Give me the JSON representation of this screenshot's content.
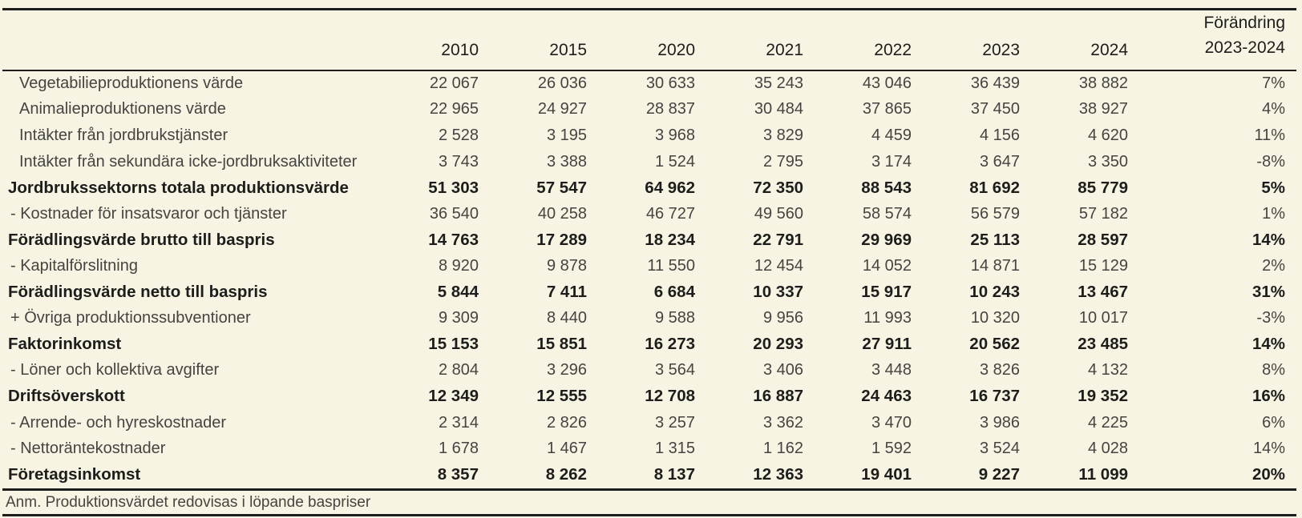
{
  "columns": {
    "years": [
      "2010",
      "2015",
      "2020",
      "2021",
      "2022",
      "2023",
      "2024"
    ],
    "change_label": "Förändring",
    "change_period": "2023-2024"
  },
  "rows": [
    {
      "label": "Vegetabilieproduktionens värde",
      "style": "plain",
      "values": [
        "22 067",
        "26 036",
        "30 633",
        "35 243",
        "43 046",
        "36 439",
        "38 882"
      ],
      "change": "7%"
    },
    {
      "label": "Animalieproduktionens värde",
      "style": "plain",
      "values": [
        "22 965",
        "24 927",
        "28 837",
        "30 484",
        "37 865",
        "37 450",
        "38 927"
      ],
      "change": "4%"
    },
    {
      "label": "Intäkter från jordbrukstjänster",
      "style": "plain",
      "values": [
        "2 528",
        "3 195",
        "3 968",
        "3 829",
        "4 459",
        "4 156",
        "4 620"
      ],
      "change": "11%"
    },
    {
      "label": "Intäkter från sekundära icke-jordbruksaktiviteter",
      "style": "plain",
      "values": [
        "3 743",
        "3 388",
        "1 524",
        "2 795",
        "3 174",
        "3 647",
        "3 350"
      ],
      "change": "-8%"
    },
    {
      "label": "Jordbrukssektorns totala produktionsvärde",
      "style": "bold",
      "values": [
        "51 303",
        "57 547",
        "64 962",
        "72 350",
        "88 543",
        "81 692",
        "85 779"
      ],
      "change": "5%"
    },
    {
      "label": "- Kostnader för insatsvaror och tjänster",
      "style": "sub",
      "values": [
        "36 540",
        "40 258",
        "46 727",
        "49 560",
        "58 574",
        "56 579",
        "57 182"
      ],
      "change": "1%"
    },
    {
      "label": "Förädlingsvärde brutto till baspris",
      "style": "bold",
      "values": [
        "14 763",
        "17 289",
        "18 234",
        "22 791",
        "29 969",
        "25 113",
        "28 597"
      ],
      "change": "14%"
    },
    {
      "label": "- Kapitalförslitning",
      "style": "sub",
      "values": [
        "8 920",
        "9 878",
        "11 550",
        "12 454",
        "14 052",
        "14 871",
        "15 129"
      ],
      "change": "2%"
    },
    {
      "label": "Förädlingsvärde netto till baspris",
      "style": "bold",
      "values": [
        "5 844",
        "7 411",
        "6 684",
        "10 337",
        "15 917",
        "10 243",
        "13 467"
      ],
      "change": "31%"
    },
    {
      "label": "+ Övriga produktionssubventioner",
      "style": "sub",
      "values": [
        "9 309",
        "8 440",
        "9 588",
        "9 956",
        "11 993",
        "10 320",
        "10 017"
      ],
      "change": "-3%"
    },
    {
      "label": "Faktorinkomst",
      "style": "bold",
      "values": [
        "15 153",
        "15 851",
        "16 273",
        "20 293",
        "27 911",
        "20 562",
        "23 485"
      ],
      "change": "14%"
    },
    {
      "label": "- Löner och kollektiva avgifter",
      "style": "sub",
      "values": [
        "2 804",
        "3 296",
        "3 564",
        "3 406",
        "3 448",
        "3 826",
        "4 132"
      ],
      "change": "8%"
    },
    {
      "label": "Driftsöverskott",
      "style": "bold",
      "values": [
        "12 349",
        "12 555",
        "12 708",
        "16 887",
        "24 463",
        "16 737",
        "19 352"
      ],
      "change": "16%"
    },
    {
      "label": "- Arrende- och hyreskostnader",
      "style": "sub",
      "values": [
        "2 314",
        "2 826",
        "3 257",
        "3 362",
        "3 470",
        "3 986",
        "4 225"
      ],
      "change": "6%"
    },
    {
      "label": "- Nettoräntekostnader",
      "style": "sub",
      "values": [
        "1 678",
        "1 467",
        "1 315",
        "1 162",
        "1 592",
        "3 524",
        "4 028"
      ],
      "change": "14%"
    },
    {
      "label": "Företagsinkomst",
      "style": "bold",
      "values": [
        "8 357",
        "8 262",
        "8 137",
        "12 363",
        "19 401",
        "9 227",
        "11 099"
      ],
      "change": "20%"
    }
  ],
  "footnote": "Anm. Produktionsvärdet redovisas i löpande baspriser",
  "colors": {
    "background": "#f7f4e3",
    "rule": "#1c1c1a",
    "text_strong": "#1d1d1b",
    "text_regular": "#454440"
  },
  "chart_data": {
    "type": "table",
    "title": "",
    "columns": [
      "2010",
      "2015",
      "2020",
      "2021",
      "2022",
      "2023",
      "2024",
      "Förändring 2023-2024"
    ],
    "rows": [
      {
        "label": "Vegetabilieproduktionens värde",
        "values": [
          22067,
          26036,
          30633,
          35243,
          43046,
          36439,
          38882
        ],
        "change": "7%",
        "emphasis": false
      },
      {
        "label": "Animalieproduktionens värde",
        "values": [
          22965,
          24927,
          28837,
          30484,
          37865,
          37450,
          38927
        ],
        "change": "4%",
        "emphasis": false
      },
      {
        "label": "Intäkter från jordbrukstjänster",
        "values": [
          2528,
          3195,
          3968,
          3829,
          4459,
          4156,
          4620
        ],
        "change": "11%",
        "emphasis": false
      },
      {
        "label": "Intäkter från sekundära icke-jordbruksaktiviteter",
        "values": [
          3743,
          3388,
          1524,
          2795,
          3174,
          3647,
          3350
        ],
        "change": "-8%",
        "emphasis": false
      },
      {
        "label": "Jordbrukssektorns totala produktionsvärde",
        "values": [
          51303,
          57547,
          64962,
          72350,
          88543,
          81692,
          85779
        ],
        "change": "5%",
        "emphasis": true
      },
      {
        "label": "- Kostnader för insatsvaror och tjänster",
        "values": [
          36540,
          40258,
          46727,
          49560,
          58574,
          56579,
          57182
        ],
        "change": "1%",
        "emphasis": false
      },
      {
        "label": "Förädlingsvärde brutto till baspris",
        "values": [
          14763,
          17289,
          18234,
          22791,
          29969,
          25113,
          28597
        ],
        "change": "14%",
        "emphasis": true
      },
      {
        "label": "- Kapitalförslitning",
        "values": [
          8920,
          9878,
          11550,
          12454,
          14052,
          14871,
          15129
        ],
        "change": "2%",
        "emphasis": false
      },
      {
        "label": "Förädlingsvärde netto till baspris",
        "values": [
          5844,
          7411,
          6684,
          10337,
          15917,
          10243,
          13467
        ],
        "change": "31%",
        "emphasis": true
      },
      {
        "label": "+ Övriga produktionssubventioner",
        "values": [
          9309,
          8440,
          9588,
          9956,
          11993,
          10320,
          10017
        ],
        "change": "-3%",
        "emphasis": false
      },
      {
        "label": "Faktorinkomst",
        "values": [
          15153,
          15851,
          16273,
          20293,
          27911,
          20562,
          23485
        ],
        "change": "14%",
        "emphasis": true
      },
      {
        "label": "- Löner och kollektiva avgifter",
        "values": [
          2804,
          3296,
          3564,
          3406,
          3448,
          3826,
          4132
        ],
        "change": "8%",
        "emphasis": false
      },
      {
        "label": "Driftsöverskott",
        "values": [
          12349,
          12555,
          12708,
          16887,
          24463,
          16737,
          19352
        ],
        "change": "16%",
        "emphasis": true
      },
      {
        "label": "- Arrende- och hyreskostnader",
        "values": [
          2314,
          2826,
          3257,
          3362,
          3470,
          3986,
          4225
        ],
        "change": "6%",
        "emphasis": false
      },
      {
        "label": "- Nettoräntekostnader",
        "values": [
          1678,
          1467,
          1315,
          1162,
          1592,
          3524,
          4028
        ],
        "change": "14%",
        "emphasis": false
      },
      {
        "label": "Företagsinkomst",
        "values": [
          8357,
          8262,
          8137,
          12363,
          19401,
          9227,
          11099
        ],
        "change": "20%",
        "emphasis": true
      }
    ],
    "footnote": "Anm. Produktionsvärdet redovisas i löpande baspriser"
  }
}
